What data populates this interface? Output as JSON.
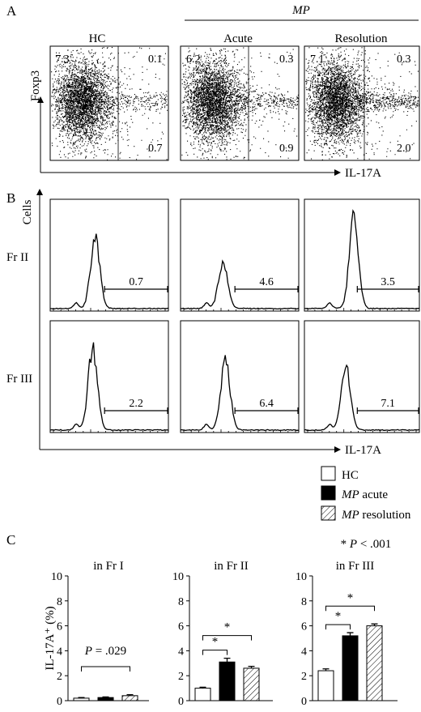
{
  "panels": {
    "a": "A",
    "b": "B",
    "c": "C"
  },
  "panel_a": {
    "group_label": "MP",
    "y_axis": "Foxp3",
    "x_axis": "IL-17A",
    "plots": [
      {
        "title": "HC",
        "upper_left": "7.3",
        "upper_right": "0.1",
        "lower_right": "0.7"
      },
      {
        "title": "Acute",
        "upper_left": "6.2",
        "upper_right": "0.3",
        "lower_right": "0.9"
      },
      {
        "title": "Resolution",
        "upper_left": "7.1",
        "upper_right": "0.3",
        "lower_right": "2.0"
      }
    ]
  },
  "panel_b": {
    "y_axis": "Cells",
    "x_axis": "IL-17A",
    "rows": [
      {
        "label": "Fr II",
        "values": [
          "0.7",
          "4.6",
          "3.5"
        ]
      },
      {
        "label": "Fr III",
        "values": [
          "2.2",
          "6.4",
          "7.1"
        ]
      }
    ]
  },
  "legend": [
    {
      "italic": "",
      "text": "HC",
      "fill": "white"
    },
    {
      "italic": "MP",
      "text": " acute",
      "fill": "black"
    },
    {
      "italic": "MP",
      "text": " resolution",
      "fill": "hatch"
    }
  ],
  "significance_note": {
    "star": "* ",
    "p": "P",
    "rest": " < .001"
  },
  "chart_data": [
    {
      "type": "bar",
      "title": "in Fr I",
      "ylabel": "IL-17A⁺ (%)",
      "ylim": [
        0,
        10
      ],
      "yticks": [
        "0",
        "2",
        "4",
        "6",
        "8",
        "10"
      ],
      "categories": [
        "HC",
        "MP acute",
        "MP resolution"
      ],
      "values": [
        0.2,
        0.25,
        0.4
      ],
      "errors": [
        0.05,
        0.05,
        0.08
      ],
      "annotation": {
        "p": "P",
        "text": " = .029"
      }
    },
    {
      "type": "bar",
      "title": "in Fr II",
      "ylim": [
        0,
        10
      ],
      "yticks": [
        "0",
        "2",
        "4",
        "6",
        "8",
        "10"
      ],
      "categories": [
        "HC",
        "MP acute",
        "MP resolution"
      ],
      "values": [
        1.0,
        3.1,
        2.6
      ],
      "errors": [
        0.08,
        0.3,
        0.15
      ],
      "significance": [
        "*",
        "*"
      ]
    },
    {
      "type": "bar",
      "title": "in Fr III",
      "ylim": [
        0,
        10
      ],
      "yticks": [
        "0",
        "2",
        "4",
        "6",
        "8",
        "10"
      ],
      "categories": [
        "HC",
        "MP acute",
        "MP resolution"
      ],
      "values": [
        2.4,
        5.2,
        6.0
      ],
      "errors": [
        0.15,
        0.25,
        0.15
      ],
      "significance": [
        "*",
        "*"
      ]
    }
  ]
}
